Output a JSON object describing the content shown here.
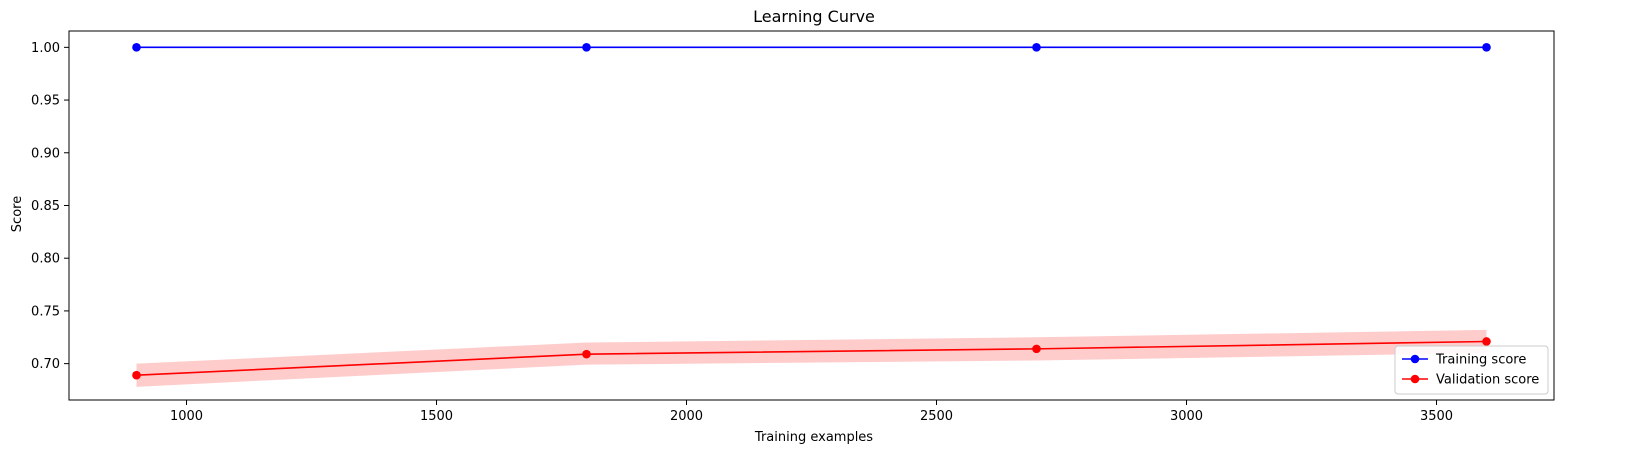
{
  "chart_data": {
    "type": "line",
    "title": "Learning Curve",
    "xlabel": "Training examples",
    "ylabel": "Score",
    "xlim": [
      765,
      3735
    ],
    "ylim": [
      0.6655,
      1.0155
    ],
    "xticks": [
      1000,
      1500,
      2000,
      2500,
      3000,
      3500
    ],
    "yticks": [
      0.7,
      0.75,
      0.8,
      0.85,
      0.9,
      0.95,
      1.0
    ],
    "x": [
      900,
      1800,
      2700,
      3600
    ],
    "series": [
      {
        "name": "Training score",
        "color": "#0000ff",
        "values": [
          1.0,
          1.0,
          1.0,
          1.0
        ],
        "band_lower": [
          1.0,
          1.0,
          1.0,
          1.0
        ],
        "band_upper": [
          1.0,
          1.0,
          1.0,
          1.0
        ]
      },
      {
        "name": "Validation score",
        "color": "#ff0000",
        "values": [
          0.689,
          0.709,
          0.714,
          0.721
        ],
        "band_lower": [
          0.678,
          0.699,
          0.703,
          0.71
        ],
        "band_upper": [
          0.7,
          0.72,
          0.725,
          0.732
        ]
      }
    ],
    "grid": false,
    "legend_position": "lower-right"
  }
}
